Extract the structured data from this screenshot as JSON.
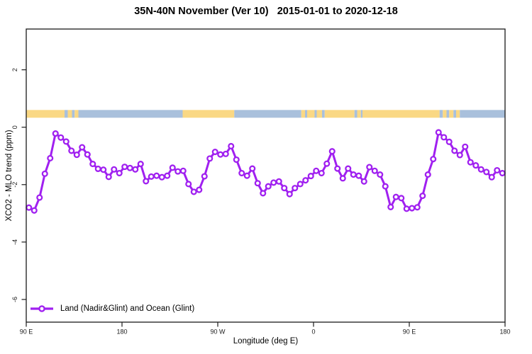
{
  "title": "35N-40N November (Ver 10)   2015-01-01 to 2020-12-18",
  "chart_data": {
    "type": "line",
    "title": "35N-40N November (Ver 10)   2015-01-01 to 2020-12-18",
    "xlabel": "Longitude (deg E)",
    "ylabel": "XCO2 - MLO trend (ppm)",
    "xlim": [
      90,
      540
    ],
    "ylim": [
      -6.79,
      3.42
    ],
    "grid": false,
    "legend_position": "bottom-left",
    "x_ticks": [
      {
        "lon": 90,
        "label": "90 E"
      },
      {
        "lon": 180,
        "label": "180"
      },
      {
        "lon": 270,
        "label": "90 W"
      },
      {
        "lon": 360,
        "label": "0"
      },
      {
        "lon": 450,
        "label": "90 E"
      },
      {
        "lon": 540,
        "label": "180"
      }
    ],
    "y_ticks": [
      {
        "value": 2,
        "label": "2"
      },
      {
        "value": 0,
        "label": "0"
      },
      {
        "value": -2,
        "label": "-2"
      },
      {
        "value": -4,
        "label": "-4"
      },
      {
        "value": -6,
        "label": "-6"
      }
    ],
    "series": [
      {
        "name": "Land (Nadir&Glint) and Ocean (Glint)",
        "color": "#A020F0",
        "marker": "open-circle",
        "x_start_lon": 92.5,
        "x_step_deg": 5,
        "values": [
          -2.8,
          -2.9,
          -2.45,
          -1.62,
          -1.08,
          -0.22,
          -0.36,
          -0.5,
          -0.82,
          -0.96,
          -0.7,
          -0.95,
          -1.28,
          -1.45,
          -1.48,
          -1.73,
          -1.47,
          -1.6,
          -1.38,
          -1.42,
          -1.47,
          -1.28,
          -1.88,
          -1.72,
          -1.69,
          -1.74,
          -1.69,
          -1.41,
          -1.54,
          -1.52,
          -1.98,
          -2.25,
          -2.18,
          -1.71,
          -1.09,
          -0.86,
          -0.95,
          -0.93,
          -0.66,
          -1.13,
          -1.6,
          -1.69,
          -1.44,
          -1.95,
          -2.3,
          -2.06,
          -1.93,
          -1.89,
          -2.12,
          -2.33,
          -2.12,
          -1.98,
          -1.85,
          -1.7,
          -1.52,
          -1.6,
          -1.27,
          -0.84,
          -1.44,
          -1.78,
          -1.44,
          -1.65,
          -1.69,
          -1.89,
          -1.39,
          -1.52,
          -1.65,
          -2.06,
          -2.78,
          -2.43,
          -2.47,
          -2.84,
          -2.82,
          -2.79,
          -2.39,
          -1.65,
          -1.11,
          -0.18,
          -0.35,
          -0.51,
          -0.82,
          -0.97,
          -0.68,
          -1.22,
          -1.33,
          -1.47,
          -1.56,
          -1.74,
          -1.5,
          -1.6
        ]
      }
    ],
    "surface_band": {
      "description": "land/ocean strip",
      "value_range": [
        0.33,
        0.6
      ],
      "land_color": "#FAD884",
      "ocean_color": "#A9C0DC",
      "segments": [
        {
          "from": 90,
          "to": 126,
          "type": "land"
        },
        {
          "from": 126,
          "to": 129,
          "type": "ocean"
        },
        {
          "from": 129,
          "to": 133,
          "type": "land"
        },
        {
          "from": 133,
          "to": 135.5,
          "type": "ocean"
        },
        {
          "from": 135.5,
          "to": 139,
          "type": "land"
        },
        {
          "from": 139,
          "to": 237,
          "type": "ocean"
        },
        {
          "from": 237,
          "to": 285.5,
          "type": "land"
        },
        {
          "from": 285.5,
          "to": 348.5,
          "type": "ocean"
        },
        {
          "from": 348.5,
          "to": 352,
          "type": "land"
        },
        {
          "from": 352,
          "to": 354,
          "type": "ocean"
        },
        {
          "from": 354,
          "to": 361,
          "type": "land"
        },
        {
          "from": 361,
          "to": 363,
          "type": "ocean"
        },
        {
          "from": 363,
          "to": 368,
          "type": "land"
        },
        {
          "from": 368,
          "to": 370.5,
          "type": "ocean"
        },
        {
          "from": 370.5,
          "to": 398.5,
          "type": "land"
        },
        {
          "from": 398.5,
          "to": 401,
          "type": "ocean"
        },
        {
          "from": 401,
          "to": 404.5,
          "type": "land"
        },
        {
          "from": 404.5,
          "to": 406,
          "type": "ocean"
        },
        {
          "from": 406,
          "to": 478.5,
          "type": "land"
        },
        {
          "from": 478.5,
          "to": 481.5,
          "type": "ocean"
        },
        {
          "from": 481.5,
          "to": 485,
          "type": "land"
        },
        {
          "from": 485,
          "to": 487.5,
          "type": "ocean"
        },
        {
          "from": 487.5,
          "to": 491.5,
          "type": "land"
        },
        {
          "from": 491.5,
          "to": 494,
          "type": "ocean"
        },
        {
          "from": 494,
          "to": 497.5,
          "type": "land"
        },
        {
          "from": 497.5,
          "to": 540,
          "type": "ocean"
        }
      ]
    },
    "legend": {
      "label": "Land (Nadir&Glint) and Ocean (Glint)"
    }
  }
}
